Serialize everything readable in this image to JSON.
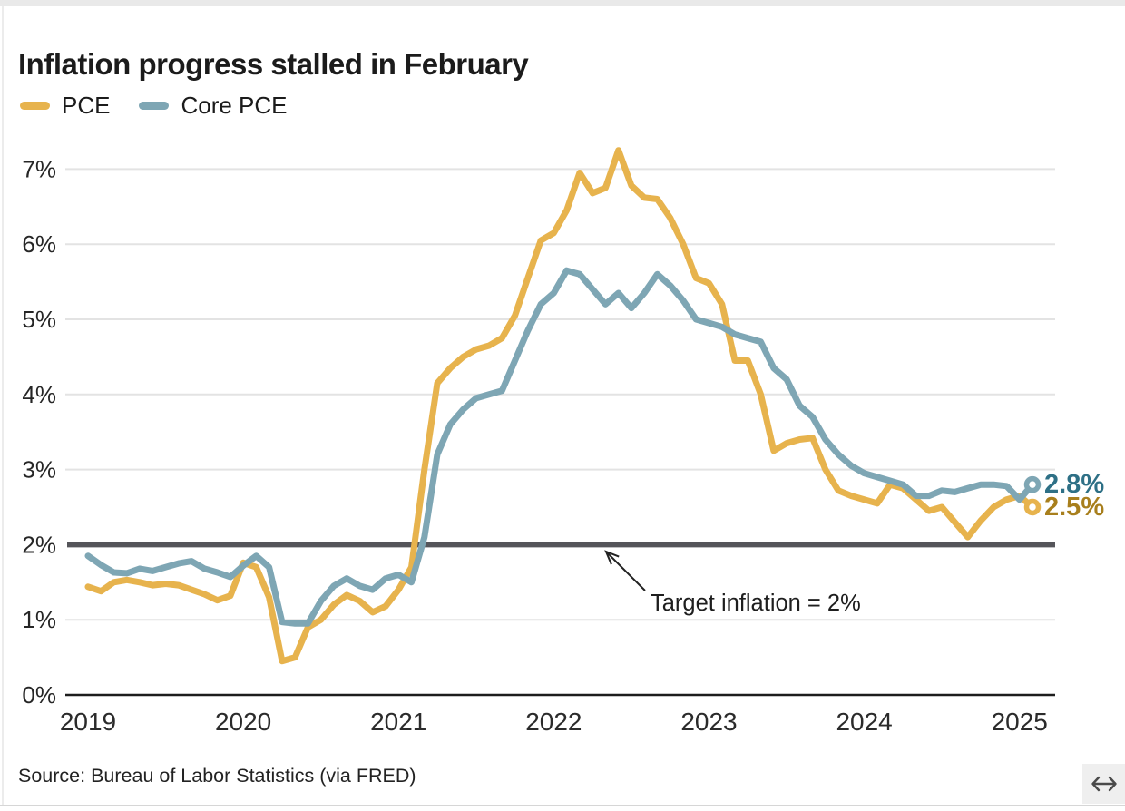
{
  "header": {
    "title": "Inflation progress stalled in February"
  },
  "legend": {
    "items": [
      {
        "label": "PCE",
        "color": "#E7B34D"
      },
      {
        "label": "Core PCE",
        "color": "#7EA6B4"
      }
    ]
  },
  "chart_data": {
    "type": "line",
    "title": "Inflation progress stalled in February",
    "x_start": "Jan 2019",
    "x_end": "Feb 2025",
    "x_frequency": "monthly",
    "x_tick_labels": [
      "2019",
      "2020",
      "2021",
      "2022",
      "2023",
      "2024",
      "2025"
    ],
    "y_tick_labels": [
      "0%",
      "1%",
      "2%",
      "3%",
      "4%",
      "5%",
      "6%",
      "7%"
    ],
    "ylim": [
      0,
      7.4
    ],
    "grid": "horizontal",
    "legend_position": "top-left",
    "target_line": {
      "value": 2,
      "label": "Target inflation = 2%",
      "color": "#55555A"
    },
    "series": [
      {
        "name": "PCE",
        "color": "#E7B34D",
        "end_label": "2.5%",
        "end_label_color": "#A87F1D",
        "values": [
          1.44,
          1.38,
          1.5,
          1.53,
          1.5,
          1.46,
          1.48,
          1.46,
          1.4,
          1.34,
          1.26,
          1.32,
          1.76,
          1.7,
          1.3,
          0.45,
          0.5,
          0.9,
          1.0,
          1.2,
          1.33,
          1.25,
          1.1,
          1.18,
          1.4,
          1.7,
          3.0,
          4.15,
          4.35,
          4.5,
          4.6,
          4.65,
          4.75,
          5.05,
          5.55,
          6.05,
          6.15,
          6.45,
          6.95,
          6.68,
          6.75,
          7.25,
          6.78,
          6.62,
          6.6,
          6.35,
          6.0,
          5.55,
          5.48,
          5.2,
          4.45,
          4.45,
          4.0,
          3.25,
          3.35,
          3.4,
          3.42,
          3.0,
          2.72,
          2.65,
          2.6,
          2.55,
          2.8,
          2.75,
          2.6,
          2.45,
          2.5,
          2.3,
          2.1,
          2.32,
          2.5,
          2.6,
          2.65,
          2.5
        ]
      },
      {
        "name": "Core PCE",
        "color": "#7EA6B4",
        "end_label": "2.8%",
        "end_label_color": "#2E7086",
        "values": [
          1.85,
          1.73,
          1.63,
          1.62,
          1.68,
          1.65,
          1.7,
          1.75,
          1.78,
          1.68,
          1.63,
          1.57,
          1.72,
          1.85,
          1.7,
          0.97,
          0.95,
          0.95,
          1.25,
          1.45,
          1.55,
          1.45,
          1.4,
          1.55,
          1.6,
          1.5,
          2.1,
          3.2,
          3.6,
          3.8,
          3.95,
          4.0,
          4.05,
          4.45,
          4.85,
          5.2,
          5.35,
          5.65,
          5.6,
          5.4,
          5.2,
          5.35,
          5.15,
          5.35,
          5.6,
          5.45,
          5.25,
          5.0,
          4.95,
          4.9,
          4.8,
          4.75,
          4.7,
          4.35,
          4.2,
          3.85,
          3.7,
          3.4,
          3.2,
          3.05,
          2.95,
          2.9,
          2.85,
          2.8,
          2.65,
          2.65,
          2.72,
          2.7,
          2.75,
          2.8,
          2.8,
          2.78,
          2.6,
          2.8
        ]
      }
    ]
  },
  "annotation": {
    "text": "Target inflation = 2%"
  },
  "source": {
    "text": "Source: Bureau of Labor Statistics (via FRED)"
  },
  "controls": {
    "resize_icon": "horizontal-double-arrow"
  }
}
